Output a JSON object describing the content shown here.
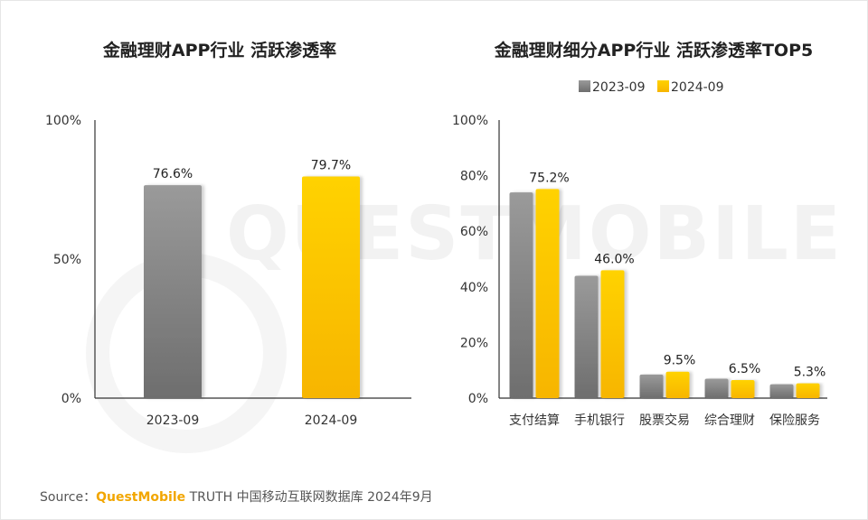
{
  "watermark": "QUESTMOBILE",
  "source": {
    "prefix": "Source：",
    "brand": "QuestMobile",
    "rest": " TRUTH 中国移动互联网数据库 2024年9月"
  },
  "colors": {
    "gray_top": "#9a9a9a",
    "gray_bottom": "#6e6e6e",
    "gold_top": "#ffd200",
    "gold_bottom": "#f7b500",
    "axis": "#333333"
  },
  "chart_data": [
    {
      "type": "bar",
      "title": "金融理财APP行业 活跃渗透率",
      "categories": [
        "2023-09",
        "2024-09"
      ],
      "values": [
        76.6,
        79.7
      ],
      "value_labels": [
        "76.6%",
        "79.7%"
      ],
      "ylim": [
        0,
        100
      ],
      "yticks": [
        "0%",
        "50%",
        "100%"
      ],
      "ytick_values": [
        0,
        50,
        100
      ],
      "xlabel": "",
      "ylabel": ""
    },
    {
      "type": "bar",
      "title": "金融理财细分APP行业 活跃渗透率TOP5",
      "categories": [
        "支付结算",
        "手机银行",
        "股票交易",
        "综合理财",
        "保险服务"
      ],
      "series": [
        {
          "name": "2023-09",
          "values": [
            74.0,
            44.0,
            8.5,
            7.0,
            5.0
          ]
        },
        {
          "name": "2024-09",
          "values": [
            75.2,
            46.0,
            9.5,
            6.5,
            5.3
          ],
          "labels": [
            "75.2%",
            "46.0%",
            "9.5%",
            "6.5%",
            "5.3%"
          ]
        }
      ],
      "ylim": [
        0,
        100
      ],
      "yticks": [
        "0%",
        "20%",
        "40%",
        "60%",
        "80%",
        "100%"
      ],
      "ytick_values": [
        0,
        20,
        40,
        60,
        80,
        100
      ],
      "legend": [
        "2023-09",
        "2024-09"
      ],
      "legend_position": "top-center",
      "xlabel": "",
      "ylabel": ""
    }
  ]
}
